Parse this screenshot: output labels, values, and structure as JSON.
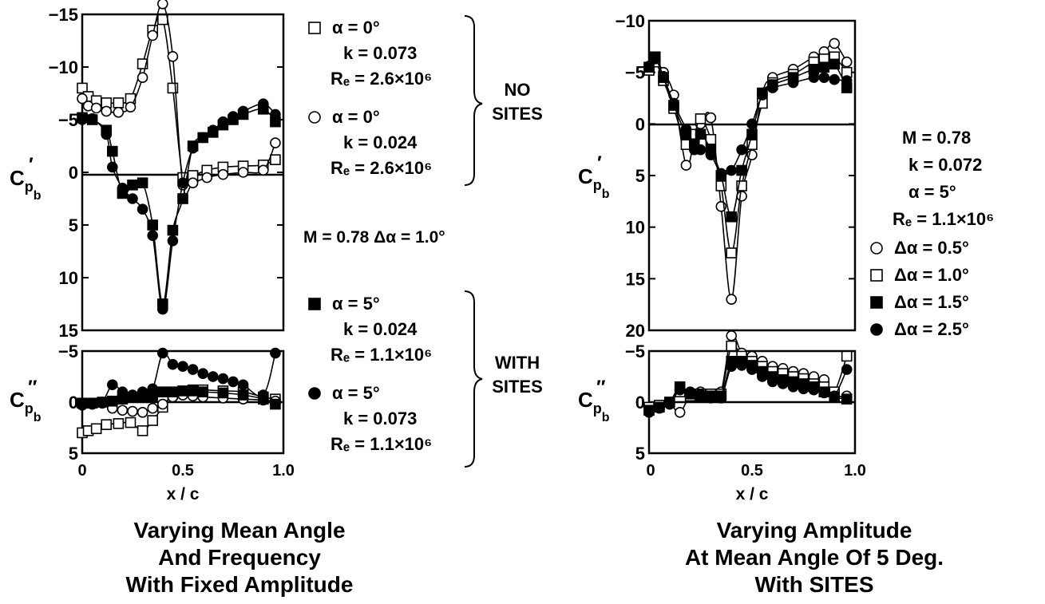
{
  "left": {
    "caption": [
      "Varying Mean Angle",
      "And Frequency",
      "With Fixed Amplitude"
    ],
    "common": "M  =  0.78   Δα =  1.0°",
    "groups": [
      {
        "label": [
          "NO",
          "SITES"
        ],
        "entries": [
          {
            "marker": "open-square",
            "lines": [
              "α  =  0°",
              "k  =  0.073",
              "Rₑ  =  2.6×10⁶"
            ]
          },
          {
            "marker": "open-circle",
            "lines": [
              "α  =  0°",
              "k  =  0.024",
              "Rₑ  =  2.6×10⁶"
            ]
          }
        ]
      },
      {
        "label": [
          "WITH",
          "SITES"
        ],
        "entries": [
          {
            "marker": "filled-square",
            "lines": [
              "α  =  5°",
              "k  =  0.024",
              "Rₑ  =  1.1×10⁶"
            ]
          },
          {
            "marker": "filled-circle",
            "lines": [
              "α  =  5°",
              "k  =  0.073",
              "Rₑ  =  1.1×10⁶"
            ]
          }
        ]
      }
    ]
  },
  "right": {
    "caption": [
      "Varying Amplitude",
      "At Mean Angle Of 5 Deg.",
      "With SITES"
    ],
    "params": [
      "M  =  0.78",
      "k  =  0.072",
      "α  =  5°",
      "Rₑ  =  1.1×10⁶"
    ],
    "legend": [
      {
        "marker": "open-circle",
        "label": "Δα  =  0.5°"
      },
      {
        "marker": "open-square",
        "label": "Δα  =  1.0°"
      },
      {
        "marker": "filled-square",
        "label": "Δα  =  1.5°"
      },
      {
        "marker": "filled-circle",
        "label": "Δα  =  2.5°"
      }
    ]
  },
  "chart_data": [
    {
      "type": "line",
      "panel": "left-upper",
      "xlabel": "",
      "ylabel": "Cp′b",
      "xlim": [
        0,
        1
      ],
      "ylim": [
        -15,
        15
      ],
      "y_inverted": true,
      "yticks": [
        "-15",
        "-10",
        "-5",
        "0",
        "5",
        "10",
        "15"
      ],
      "grid": false,
      "series": [
        {
          "marker": "open-square",
          "x": [
            0,
            0.03,
            0.07,
            0.12,
            0.18,
            0.24,
            0.3,
            0.35,
            0.4,
            0.45,
            0.5,
            0.55,
            0.62,
            0.7,
            0.8,
            0.9,
            0.96
          ],
          "y": [
            -8,
            -7.2,
            -6.8,
            -6.6,
            -6.6,
            -7,
            -10.3,
            -13.5,
            -14.5,
            -8,
            0.5,
            0.3,
            -0.2,
            -0.5,
            -0.6,
            -0.7,
            -1.2
          ]
        },
        {
          "marker": "open-circle",
          "x": [
            0,
            0.03,
            0.07,
            0.12,
            0.18,
            0.24,
            0.3,
            0.35,
            0.4,
            0.45,
            0.5,
            0.55,
            0.62,
            0.7,
            0.8,
            0.9,
            0.96
          ],
          "y": [
            -7,
            -6.3,
            -6.1,
            -5.8,
            -5.7,
            -6.2,
            -9,
            -13,
            -16,
            -11,
            1.2,
            1,
            0.5,
            0.2,
            0,
            -0.2,
            -2.8
          ]
        },
        {
          "marker": "filled-square",
          "x": [
            0,
            0.05,
            0.12,
            0.15,
            0.2,
            0.25,
            0.3,
            0.35,
            0.4,
            0.45,
            0.5,
            0.55,
            0.6,
            0.65,
            0.7,
            0.75,
            0.8,
            0.9,
            0.96
          ],
          "y": [
            -5.2,
            -5,
            -4,
            -2,
            2,
            1.2,
            1,
            5,
            12.5,
            5.5,
            2.5,
            -2.5,
            -3.3,
            -3.8,
            -4.5,
            -5,
            -5.5,
            -6,
            -4.8
          ]
        },
        {
          "marker": "filled-circle",
          "x": [
            0,
            0.05,
            0.12,
            0.15,
            0.2,
            0.25,
            0.3,
            0.35,
            0.4,
            0.45,
            0.5,
            0.55,
            0.6,
            0.65,
            0.7,
            0.75,
            0.8,
            0.9,
            0.96
          ],
          "y": [
            -5,
            -5.1,
            -3.6,
            -0.5,
            1.5,
            2.5,
            3.5,
            6,
            13,
            6.5,
            1,
            -2.3,
            -3.3,
            -4,
            -4.8,
            -5.3,
            -5.8,
            -6.5,
            -5.5
          ]
        }
      ]
    },
    {
      "type": "line",
      "panel": "left-lower",
      "xlabel": "x / c",
      "ylabel": "Cp″b",
      "xlim": [
        0,
        1
      ],
      "ylim": [
        -5,
        5
      ],
      "y_inverted": true,
      "xticks": [
        "0",
        "0.5",
        "1.0"
      ],
      "yticks": [
        "-5",
        "0",
        "5"
      ],
      "grid": false,
      "series": [
        {
          "marker": "open-square",
          "x": [
            0,
            0.03,
            0.07,
            0.12,
            0.18,
            0.24,
            0.3,
            0.35,
            0.4,
            0.45,
            0.5,
            0.55,
            0.6,
            0.7,
            0.8,
            0.9,
            0.96
          ],
          "y": [
            3,
            2.8,
            2.6,
            2.2,
            2.1,
            2,
            2.8,
            1.8,
            0.5,
            -0.8,
            -1,
            -1.2,
            -1.2,
            -1.1,
            -1,
            -0.5,
            -0.3
          ]
        },
        {
          "marker": "open-circle",
          "x": [
            0,
            0.05,
            0.1,
            0.15,
            0.2,
            0.25,
            0.3,
            0.35,
            0.4,
            0.45,
            0.5,
            0.55,
            0.6,
            0.7,
            0.8,
            0.9,
            0.96
          ],
          "y": [
            0.3,
            0.2,
            0.1,
            0.6,
            0.8,
            0.9,
            1,
            0.6,
            0.2,
            -0.5,
            -0.7,
            -0.6,
            -0.5,
            -0.4,
            -0.3,
            -0.2,
            -0.1
          ]
        },
        {
          "marker": "filled-square",
          "x": [
            0,
            0.05,
            0.1,
            0.15,
            0.2,
            0.25,
            0.3,
            0.35,
            0.4,
            0.45,
            0.5,
            0.55,
            0.6,
            0.7,
            0.8,
            0.9,
            0.96
          ],
          "y": [
            0.1,
            0.1,
            0,
            -0.1,
            -0.3,
            -0.5,
            -0.5,
            -0.6,
            -1,
            -1,
            -1.1,
            -1.1,
            -1,
            -0.9,
            -0.7,
            -0.3,
            0.2
          ]
        },
        {
          "marker": "filled-circle",
          "x": [
            0,
            0.05,
            0.1,
            0.15,
            0.2,
            0.25,
            0.3,
            0.35,
            0.4,
            0.45,
            0.5,
            0.55,
            0.6,
            0.65,
            0.7,
            0.75,
            0.8,
            0.9,
            0.96
          ],
          "y": [
            0.2,
            0.2,
            0,
            -1.7,
            -1,
            -0.7,
            -1,
            -1.3,
            -4.8,
            -3.7,
            -3.5,
            -3.2,
            -2.8,
            -2.5,
            -2.3,
            -2,
            -1.7,
            -0.7,
            -4.8
          ]
        }
      ]
    },
    {
      "type": "line",
      "panel": "right-upper",
      "xlabel": "",
      "ylabel": "Cp′b",
      "xlim": [
        0,
        1
      ],
      "ylim": [
        -10,
        20
      ],
      "y_inverted": true,
      "yticks": [
        "-10",
        "-5",
        "0",
        "5",
        "10",
        "15",
        "20"
      ],
      "grid": false,
      "series": [
        {
          "marker": "open-circle",
          "x": [
            0,
            0.03,
            0.07,
            0.12,
            0.18,
            0.22,
            0.25,
            0.3,
            0.35,
            0.4,
            0.45,
            0.5,
            0.55,
            0.6,
            0.7,
            0.8,
            0.85,
            0.9,
            0.96
          ],
          "y": [
            -5.5,
            -6.2,
            -5,
            -2.8,
            4,
            1.5,
            0,
            -0.6,
            8,
            17,
            7,
            3,
            -3,
            -4.5,
            -5.3,
            -6.5,
            -7,
            -7.8,
            -6
          ]
        },
        {
          "marker": "open-square",
          "x": [
            0,
            0.03,
            0.07,
            0.12,
            0.18,
            0.22,
            0.25,
            0.3,
            0.35,
            0.4,
            0.45,
            0.5,
            0.55,
            0.6,
            0.7,
            0.8,
            0.85,
            0.9,
            0.96
          ],
          "y": [
            -5.2,
            -6,
            -4.2,
            -1.5,
            2,
            1,
            -0.5,
            1.5,
            6,
            12.5,
            6,
            2,
            -2,
            -4,
            -4.8,
            -6,
            -6.3,
            -6.5,
            -5
          ]
        },
        {
          "marker": "filled-square",
          "x": [
            0,
            0.03,
            0.07,
            0.12,
            0.18,
            0.22,
            0.25,
            0.3,
            0.35,
            0.4,
            0.45,
            0.5,
            0.55,
            0.6,
            0.7,
            0.8,
            0.85,
            0.9,
            0.96
          ],
          "y": [
            -5.5,
            -6.5,
            -4.5,
            -1.8,
            1,
            2,
            1,
            2.5,
            5,
            9,
            4.5,
            1,
            -3,
            -3.8,
            -4.5,
            -5.3,
            -5.5,
            -5.8,
            -3.5
          ]
        },
        {
          "marker": "filled-circle",
          "x": [
            0,
            0.03,
            0.07,
            0.12,
            0.18,
            0.22,
            0.25,
            0.3,
            0.35,
            0.4,
            0.45,
            0.5,
            0.55,
            0.6,
            0.7,
            0.8,
            0.85,
            0.9,
            0.96
          ],
          "y": [
            -5.6,
            -6.3,
            -4.6,
            -2,
            0.5,
            2.5,
            2.5,
            3,
            4.8,
            4.5,
            2.5,
            0,
            -2.8,
            -3.5,
            -4,
            -4.5,
            -4.5,
            -4.3,
            -4.2
          ]
        }
      ]
    },
    {
      "type": "line",
      "panel": "right-lower",
      "xlabel": "x / c",
      "ylabel": "Cp″b",
      "xlim": [
        0,
        1
      ],
      "ylim": [
        -5,
        5
      ],
      "y_inverted": true,
      "xticks": [
        "0",
        "0.5",
        "1.0"
      ],
      "yticks": [
        "-5",
        "0",
        "5"
      ],
      "grid": false,
      "series": [
        {
          "marker": "open-circle",
          "x": [
            0,
            0.05,
            0.1,
            0.15,
            0.2,
            0.25,
            0.3,
            0.35,
            0.4,
            0.45,
            0.5,
            0.55,
            0.6,
            0.65,
            0.7,
            0.75,
            0.8,
            0.85,
            0.9,
            0.96
          ],
          "y": [
            0.5,
            0.5,
            0.2,
            1,
            -0.7,
            -1,
            -0.8,
            -1,
            -6.5,
            -4.8,
            -4.5,
            -4,
            -3.5,
            -3.3,
            -3,
            -2.8,
            -2.5,
            -2.2,
            -0.7,
            -0.6
          ]
        },
        {
          "marker": "open-square",
          "x": [
            0,
            0.05,
            0.1,
            0.15,
            0.2,
            0.25,
            0.3,
            0.35,
            0.4,
            0.45,
            0.5,
            0.55,
            0.6,
            0.65,
            0.7,
            0.75,
            0.8,
            0.85,
            0.9,
            0.96
          ],
          "y": [
            0.5,
            0.3,
            0,
            -1,
            -0.6,
            -0.8,
            -0.8,
            -0.8,
            -5.5,
            -4.5,
            -4,
            -3.5,
            -3,
            -2.8,
            -2.5,
            -2.3,
            -1.8,
            -1.5,
            -1,
            -4.5
          ]
        },
        {
          "marker": "filled-square",
          "x": [
            0,
            0.05,
            0.1,
            0.15,
            0.2,
            0.25,
            0.3,
            0.35,
            0.4,
            0.45,
            0.5,
            0.55,
            0.6,
            0.65,
            0.7,
            0.75,
            0.8,
            0.85,
            0.9,
            0.96
          ],
          "y": [
            0.8,
            0.5,
            0,
            -1.5,
            -0.8,
            -0.6,
            -0.6,
            -0.6,
            -4,
            -4,
            -3.6,
            -3,
            -2.5,
            -2.2,
            -2,
            -1.8,
            -1.5,
            -1,
            -0.5,
            -0.3
          ]
        },
        {
          "marker": "filled-circle",
          "x": [
            0,
            0.05,
            0.1,
            0.15,
            0.2,
            0.25,
            0.3,
            0.35,
            0.4,
            0.45,
            0.5,
            0.55,
            0.6,
            0.65,
            0.7,
            0.75,
            0.8,
            0.85,
            0.9,
            0.96
          ],
          "y": [
            1,
            0.6,
            0.2,
            -1.2,
            -1,
            -0.8,
            -0.4,
            -0.4,
            -3.5,
            -3.6,
            -3.2,
            -2.5,
            -2,
            -1.8,
            -1.5,
            -1.3,
            -1.2,
            -0.9,
            -0.6,
            -3.2
          ]
        }
      ]
    }
  ]
}
